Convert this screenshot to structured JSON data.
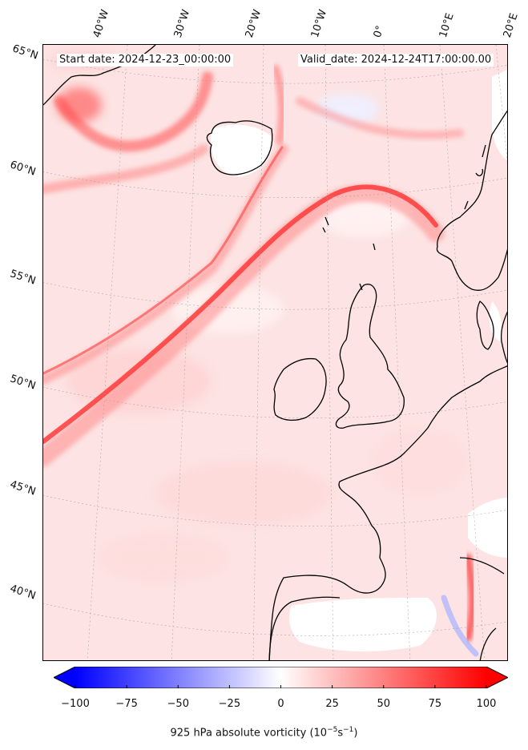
{
  "header": {
    "start_date": "Start date: 2024-12-23_00:00:00",
    "valid_date": "Valid_date: 2024-12-24T17:00:00.00"
  },
  "map": {
    "projection": "conic",
    "extent": {
      "lon_min": -45,
      "lon_max": 20,
      "lat_min": 37,
      "lat_max": 65
    },
    "gridlines": "on",
    "lat_labels": [
      "65°N",
      "60°N",
      "55°N",
      "50°N",
      "45°N",
      "40°N"
    ],
    "lon_labels": [
      "40°W",
      "30°W",
      "20°W",
      "10°W",
      "0°",
      "10°E",
      "20°E"
    ],
    "field": "925 hPa absolute vorticity",
    "colors": {
      "background": "#fde3e3",
      "strong_positive": "#ff2a2a",
      "moderate_positive": "#ff8c8c",
      "weak": "#ffffff",
      "negative": "#c8d0ff",
      "coast": "#000000"
    },
    "features": [
      "Iceland",
      "Ireland",
      "Great Britain",
      "Norway",
      "Denmark",
      "France",
      "Iberian Peninsula"
    ]
  },
  "colorbar": {
    "cmap": "bwr",
    "vmin": -100,
    "vmax": 100,
    "extend": "both",
    "ticks": [
      "−100",
      "−75",
      "−50",
      "−25",
      "0",
      "25",
      "50",
      "75",
      "100"
    ],
    "label_main": "925 hPa absolute vorticity (10",
    "label_exp1": "−5",
    "label_mid": "s",
    "label_exp2": "−1",
    "label_end": ")"
  }
}
